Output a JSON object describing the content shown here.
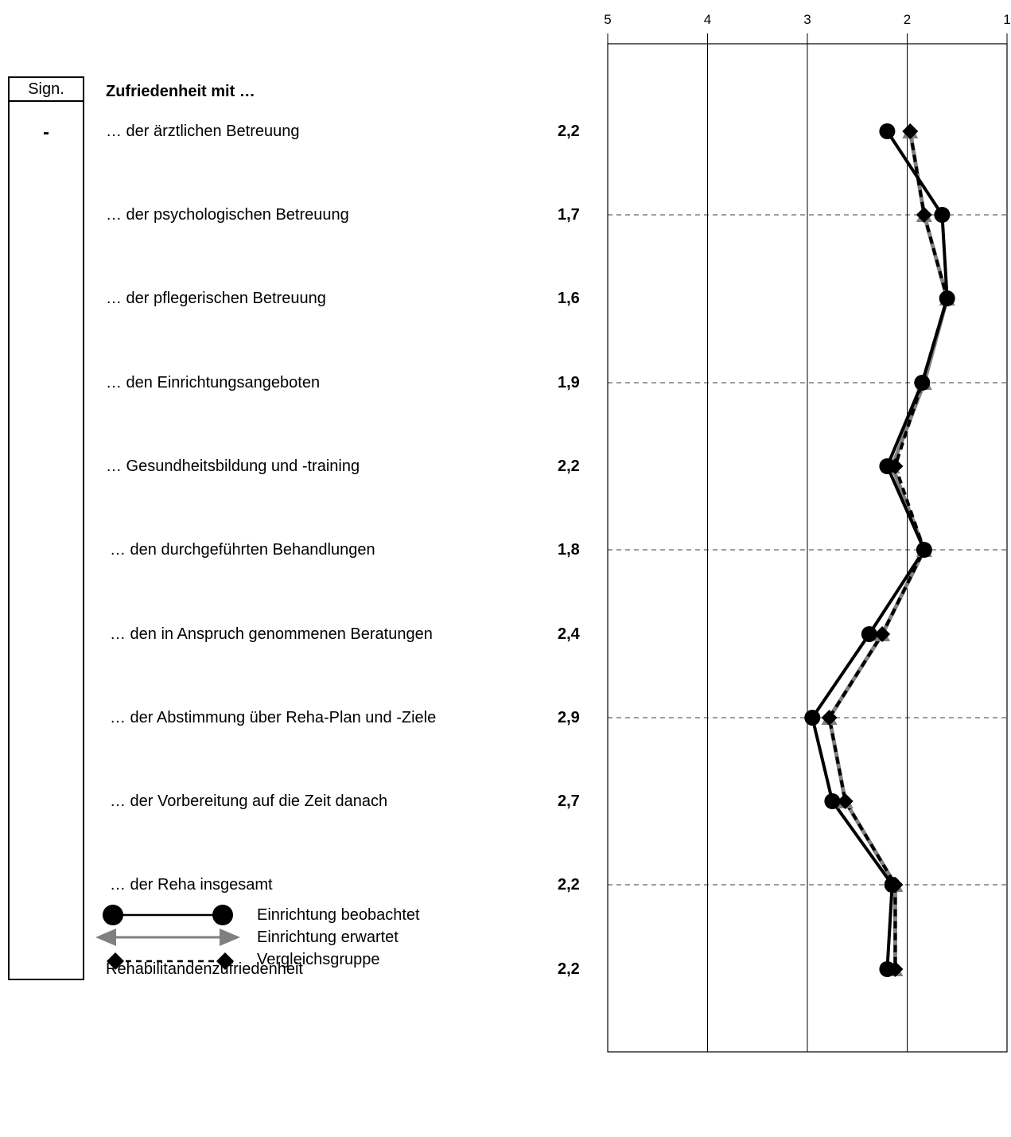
{
  "sign": {
    "header": "Sign.",
    "marks": [
      "-",
      "",
      "",
      "",
      "",
      "",
      "",
      "",
      "",
      "",
      ""
    ]
  },
  "section_title": "Zufriedenheit mit …",
  "items": [
    {
      "label": "… der ärztlichen Betreuung",
      "value": "2,2"
    },
    {
      "label": "… der psychologischen Betreuung",
      "value": "1,7"
    },
    {
      "label": "… der pflegerischen Betreuung",
      "value": "1,6"
    },
    {
      "label": "… den Einrichtungsangeboten",
      "value": "1,9"
    },
    {
      "label": "… Gesundheitsbildung und -training",
      "value": "2,2"
    },
    {
      "label": "… den durchgeführten Behandlungen",
      "value": "1,8"
    },
    {
      "label": "… den in Anspruch genommenen Beratungen",
      "value": "2,4"
    },
    {
      "label": "… der Abstimmung über Reha-Plan und -Ziele",
      "value": "2,9"
    },
    {
      "label": "… der Vorbereitung auf die Zeit danach",
      "value": "2,7"
    },
    {
      "label": "… der Reha insgesamt",
      "value": "2,2"
    },
    {
      "label": "Rehabilitandenzufriedenheit",
      "value": "2,2"
    }
  ],
  "legend": {
    "observed": "Einrichtung beobachtet",
    "expected": "Einrichtung erwartet",
    "comparison": "Vergleichsgruppe"
  },
  "colors": {
    "observed": "#000000",
    "expected": "#808080",
    "comparison": "#000000",
    "grid": "#000000"
  },
  "chart_data": {
    "type": "line",
    "orientation": "horizontal-profile",
    "axis_ticks": [
      "5",
      "4",
      "3",
      "2",
      "1"
    ],
    "xlim": [
      5,
      1
    ],
    "x_reversed": true,
    "categories": [
      "… der ärztlichen Betreuung",
      "… der psychologischen Betreuung",
      "… der pflegerischen Betreuung",
      "… den Einrichtungsangeboten",
      "… Gesundheitsbildung und -training",
      "… den durchgeführten Behandlungen",
      "… den in Anspruch genommenen Beratungen",
      "… der Abstimmung über Reha-Plan und -Ziele",
      "… der Vorbereitung auf die Zeit danach",
      "… der Reha insgesamt",
      "Rehabilitandenzufriedenheit"
    ],
    "series": [
      {
        "name": "Einrichtung beobachtet",
        "marker": "circle",
        "line": "solid",
        "values": [
          2.2,
          1.65,
          1.6,
          1.85,
          2.2,
          1.83,
          2.38,
          2.95,
          2.75,
          2.15,
          2.2
        ]
      },
      {
        "name": "Einrichtung erwartet",
        "marker": "triangle",
        "line": "solid",
        "values": [
          1.97,
          1.83,
          1.6,
          1.83,
          2.15,
          1.83,
          2.25,
          2.78,
          2.62,
          2.12,
          2.12
        ]
      },
      {
        "name": "Vergleichsgruppe",
        "marker": "diamond",
        "line": "dashed",
        "values": [
          1.97,
          1.83,
          1.6,
          1.85,
          2.12,
          1.83,
          2.25,
          2.78,
          2.62,
          2.12,
          2.12
        ]
      }
    ],
    "grid": true
  }
}
